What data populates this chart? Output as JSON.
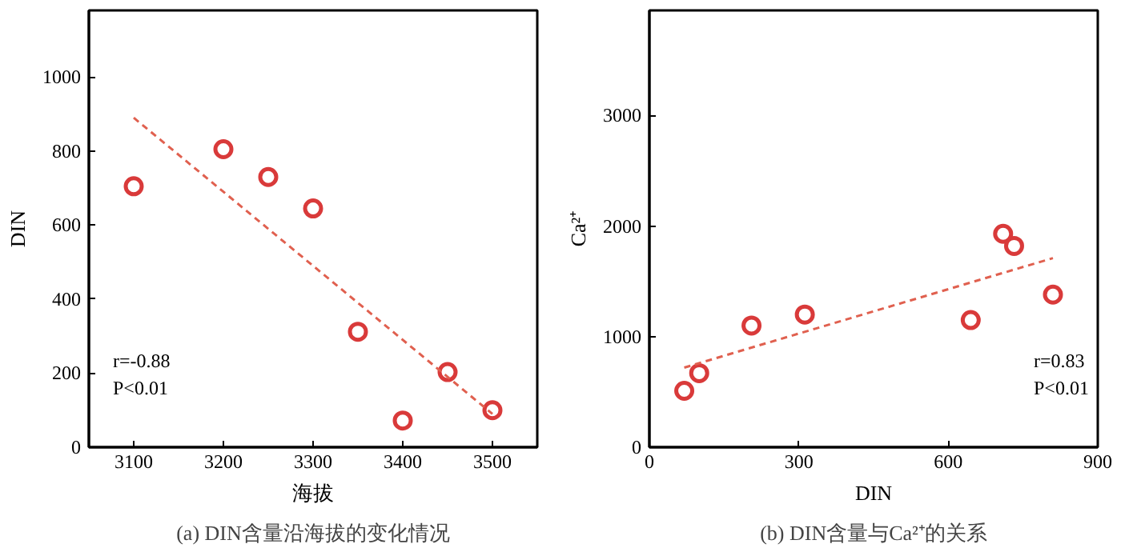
{
  "chart_data": [
    {
      "type": "scatter",
      "title": "(a) DIN含量沿海拔的变化情况",
      "xlabel": "海拔",
      "ylabel": "DIN",
      "xlim": [
        3050,
        3550
      ],
      "xticks": [
        3100,
        3200,
        3300,
        3400,
        3500
      ],
      "ylim": [
        0,
        1180
      ],
      "yticks": [
        0,
        200,
        400,
        600,
        800,
        1000
      ],
      "grid": false,
      "series": [
        {
          "marker": "circle",
          "color": "#d93a3a",
          "x": [
            3100,
            3200,
            3250,
            3300,
            3350,
            3400,
            3450,
            3500
          ],
          "values": [
            705,
            805,
            730,
            645,
            312,
            72,
            203,
            100
          ]
        },
        {
          "type": "line",
          "color": "#e0604f",
          "line_style": "dashed",
          "x": [
            3100,
            3500
          ],
          "values": [
            890,
            90
          ]
        }
      ],
      "annotations": [
        "r=-0.88",
        "P<0.01"
      ]
    },
    {
      "type": "scatter",
      "title": "(b) DIN含量与Ca²⁺的关系",
      "xlabel": "DIN",
      "ylabel": "Ca²⁺",
      "xlim": [
        0,
        900
      ],
      "xticks": [
        0,
        300,
        600,
        900
      ],
      "ylim": [
        0,
        3950
      ],
      "yticks": [
        0,
        1000,
        2000,
        3000
      ],
      "grid": false,
      "series": [
        {
          "marker": "circle",
          "color": "#d93a3a",
          "x": [
            70,
            100,
            205,
            312,
            645,
            710,
            732,
            810
          ],
          "values": [
            510,
            670,
            1100,
            1200,
            1150,
            1930,
            1820,
            1380
          ]
        },
        {
          "type": "line",
          "color": "#e0604f",
          "line_style": "dashed",
          "x": [
            70,
            810
          ],
          "values": [
            720,
            1710
          ]
        }
      ],
      "annotations": [
        "r=0.83",
        "P<0.01"
      ]
    }
  ]
}
